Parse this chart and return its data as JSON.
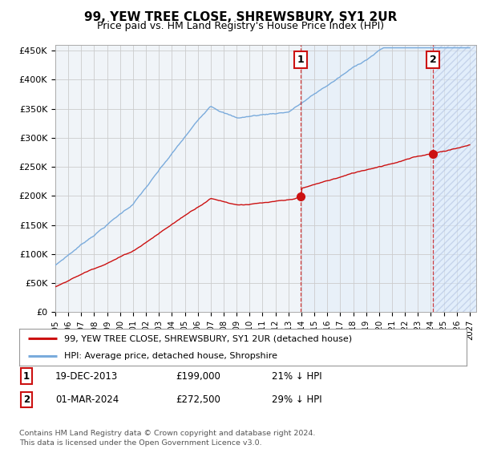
{
  "title": "99, YEW TREE CLOSE, SHREWSBURY, SY1 2UR",
  "subtitle": "Price paid vs. HM Land Registry's House Price Index (HPI)",
  "ylim": [
    0,
    460000
  ],
  "xlim_start": 1995.0,
  "xlim_end": 2027.5,
  "yticks": [
    0,
    50000,
    100000,
    150000,
    200000,
    250000,
    300000,
    350000,
    400000,
    450000
  ],
  "ytick_labels": [
    "£0",
    "£50K",
    "£100K",
    "£150K",
    "£200K",
    "£250K",
    "£300K",
    "£350K",
    "£400K",
    "£450K"
  ],
  "xtick_years": [
    1995,
    1996,
    1997,
    1998,
    1999,
    2000,
    2001,
    2002,
    2003,
    2004,
    2005,
    2006,
    2007,
    2008,
    2009,
    2010,
    2011,
    2012,
    2013,
    2014,
    2015,
    2016,
    2017,
    2018,
    2019,
    2020,
    2021,
    2022,
    2023,
    2024,
    2025,
    2026,
    2027
  ],
  "grid_color": "#cccccc",
  "hpi_color": "#7aabdc",
  "property_color": "#cc1111",
  "shaded_bg": "#e8f0f8",
  "point1_x": 2013.96,
  "point1_y": 199000,
  "point2_x": 2024.17,
  "point2_y": 272500,
  "point1_label": "1",
  "point2_label": "2",
  "legend_line1": "99, YEW TREE CLOSE, SHREWSBURY, SY1 2UR (detached house)",
  "legend_line2": "HPI: Average price, detached house, Shropshire",
  "annotation1_num": "1",
  "annotation1_date": "19-DEC-2013",
  "annotation1_price": "£199,000",
  "annotation1_hpi": "21% ↓ HPI",
  "annotation2_num": "2",
  "annotation2_date": "01-MAR-2024",
  "annotation2_price": "£272,500",
  "annotation2_hpi": "29% ↓ HPI",
  "footer": "Contains HM Land Registry data © Crown copyright and database right 2024.\nThis data is licensed under the Open Government Licence v3.0.",
  "background_color": "#ffffff",
  "plot_bg_color": "#f0f4f8"
}
